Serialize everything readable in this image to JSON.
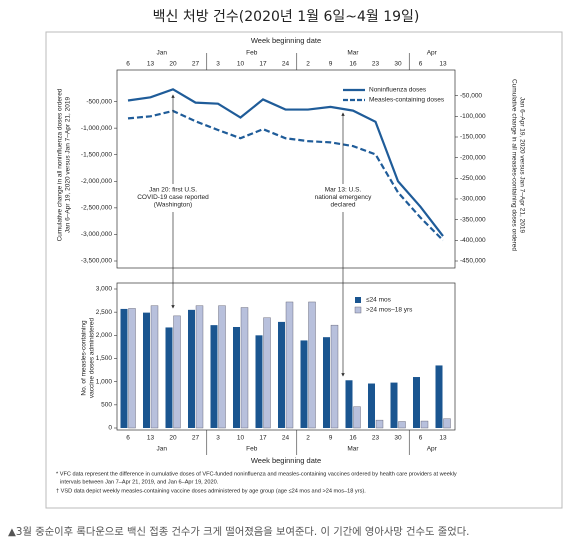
{
  "title": "백신 처방 건수(2020년 1월 6일~4월 19일)",
  "caption": "▲3월 중순이후 록다운으로 백신 접종 건수가 크게 떨어졌음을 보여준다. 이 기간에 영아사망 건수도 줄었다.",
  "footnotes": [
    "* VFC data represent the difference in cumulative doses of VFC-funded noninfluenza and measles-containing vaccines ordered by health care providers at weekly",
    "intervals between Jan 7–Apr 21, 2019, and Jan 6–Apr 19, 2020.",
    "† VSD data depict weekly measles-containing vaccine doses administered by age group (age ≤24 mos and >24 mos–18 yrs)."
  ],
  "chart_data": [
    {
      "type": "line",
      "x_title": "Week beginning date",
      "months": [
        "Jan",
        "Feb",
        "Mar",
        "Apr"
      ],
      "categories": [
        "6",
        "13",
        "20",
        "27",
        "3",
        "10",
        "17",
        "24",
        "2",
        "9",
        "16",
        "23",
        "30",
        "6",
        "13"
      ],
      "ylim": [
        -3500000,
        0
      ],
      "yticks": [
        {
          "value": -500000,
          "label": "-500,000"
        },
        {
          "value": -1000000,
          "label": "-1,000,000"
        },
        {
          "value": -1500000,
          "label": "-1,500,000"
        },
        {
          "value": -2000000,
          "label": "-2,000,000"
        },
        {
          "value": -2500000,
          "label": "-2,500,000"
        },
        {
          "value": -3000000,
          "label": "-3,000,000"
        },
        {
          "value": -3500000,
          "label": "-3,500,000"
        }
      ],
      "y2lim": [
        -450000,
        0
      ],
      "y2ticks": [
        {
          "value": -50000,
          "label": "-50,000"
        },
        {
          "value": -100000,
          "label": "-100,000"
        },
        {
          "value": -150000,
          "label": "-150,000"
        },
        {
          "value": -200000,
          "label": "-200,000"
        },
        {
          "value": -250000,
          "label": "-250,000"
        },
        {
          "value": -300000,
          "label": "-300,000"
        },
        {
          "value": -350000,
          "label": "-350,000"
        },
        {
          "value": -400000,
          "label": "-400,000"
        },
        {
          "value": -450000,
          "label": "-450,000"
        }
      ],
      "y_label": [
        "Cumulative change in all noninfluenza doses ordered",
        "Jan 6–Apr 19, 2020 versus Jan 7–Apr 21, 2019"
      ],
      "y2_label": [
        "Cumulative change in all measles-containing doses ordered",
        "Jan 6–Apr 19, 2020 versus Jan 7–Apr 21, 2019"
      ],
      "legend": "upper right",
      "series": [
        {
          "name": "Noninfluenza doses",
          "color": "#1f5c99",
          "line_style": "solid",
          "values": [
            -480000,
            -420000,
            -270000,
            -520000,
            -540000,
            -800000,
            -460000,
            -650000,
            -650000,
            -600000,
            -670000,
            -880000,
            -2000000,
            -2480000,
            -3030000
          ]
        },
        {
          "name": "Measles-containing doses",
          "color": "#1f5c99",
          "line_style": "dashed",
          "axis": "y2",
          "values": [
            -105000,
            -100000,
            -87000,
            -112000,
            -133000,
            -153000,
            -131000,
            -153000,
            -160000,
            -163000,
            -172000,
            -192000,
            -284000,
            -345000,
            -400000
          ]
        }
      ],
      "annotations": [
        [
          "Jan 20: first U.S.",
          "COVID-19 case reported",
          "(Washington)"
        ],
        [
          "Mar 13: U.S.",
          "national emergency",
          "declared"
        ]
      ]
    },
    {
      "type": "bar",
      "x_title": "Week beginning date",
      "months": [
        "Jan",
        "Feb",
        "Mar",
        "Apr"
      ],
      "categories": [
        "6",
        "13",
        "20",
        "27",
        "3",
        "10",
        "17",
        "24",
        "2",
        "9",
        "16",
        "23",
        "30",
        "6",
        "13"
      ],
      "ylim": [
        0,
        3000
      ],
      "yticks": [
        0,
        500,
        {
          "value": 1000,
          "label": "1,000"
        },
        {
          "value": 1500,
          "label": "1,500"
        },
        {
          "value": 2000,
          "label": "2,000"
        },
        {
          "value": 2500,
          "label": "2,500"
        },
        {
          "value": 3000,
          "label": "3,000"
        }
      ],
      "y_label": [
        "No. of measles-containing",
        "vaccine doses administered"
      ],
      "legend": "upper right",
      "series": [
        {
          "name": "≤24 mos",
          "color": "#1a5590",
          "values": [
            2570,
            2490,
            2170,
            2550,
            2220,
            2180,
            2000,
            2290,
            1890,
            1960,
            1030,
            960,
            980,
            1100,
            1350
          ]
        },
        {
          "name": ">24 mos–18 yrs",
          "color": "#b8c0dc",
          "values": [
            2580,
            2640,
            2420,
            2640,
            2640,
            2600,
            2380,
            2720,
            2720,
            2220,
            460,
            170,
            140,
            150,
            200
          ]
        }
      ]
    }
  ]
}
